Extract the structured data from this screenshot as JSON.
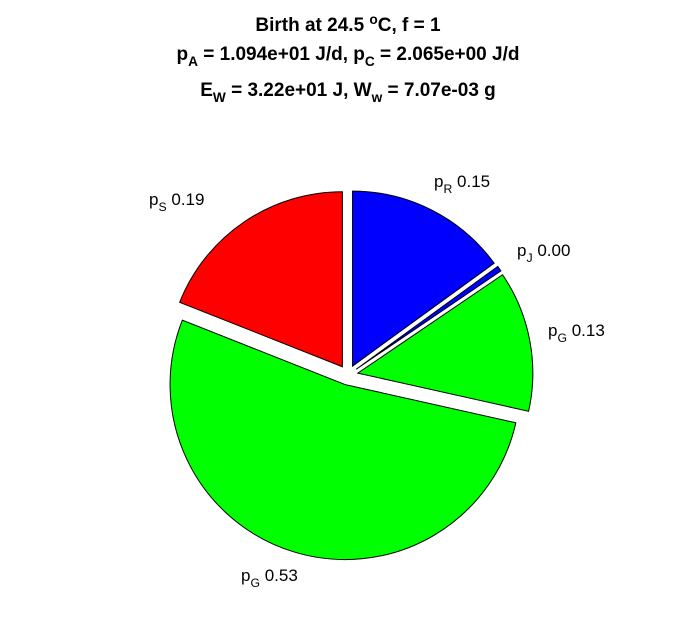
{
  "title": {
    "line1": {
      "pre": "Birth at 24.5 ",
      "sup": "o",
      "post": "C, f = 1"
    },
    "line2": {
      "a": "p",
      "a_sub": "A",
      "b": " = 1.094e+01 J/d, p",
      "b_sub": "C",
      "c": " = 2.065e+00 J/d"
    },
    "line3": {
      "a": "E",
      "a_sub": "W",
      "b": " = 3.22e+01 J, W",
      "b_sub": "w",
      "c": " = 7.07e-03 g"
    }
  },
  "chart_data": {
    "type": "pie",
    "title": "Birth at 24.5 oC, f = 1 | pA = 1.094e+01 J/d, pC = 2.065e+00 J/d | EW = 3.22e+01 J, Ww = 7.07e-03 g",
    "slices": [
      {
        "sym": "p",
        "sub": "R",
        "value": "0.15",
        "fraction": 0.15,
        "color": "#0000ff"
      },
      {
        "sym": "p",
        "sub": "J",
        "value": "0.00",
        "fraction": 0.005,
        "color": "#0000ff"
      },
      {
        "sym": "p",
        "sub": "G",
        "value": "0.13",
        "fraction": 0.13,
        "color": "#00ff00"
      },
      {
        "sym": "p",
        "sub": "G",
        "value": "0.53",
        "fraction": 0.525,
        "color": "#00ff00"
      },
      {
        "sym": "p",
        "sub": "S",
        "value": "0.19",
        "fraction": 0.19,
        "color": "#ff0000"
      }
    ],
    "legend": "none",
    "grid": false
  }
}
